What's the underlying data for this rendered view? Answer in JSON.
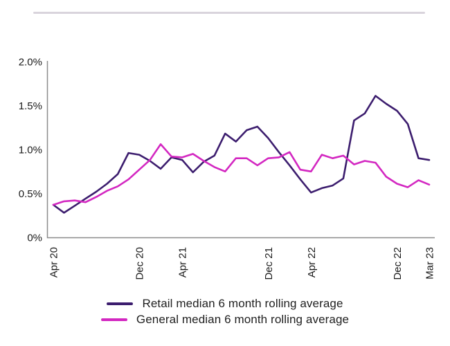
{
  "page": {
    "background_color": "#ffffff",
    "divider_color": "#D9D4DC"
  },
  "chart_data": {
    "type": "line",
    "title": "",
    "xlabel": "",
    "ylabel": "",
    "grid": false,
    "legend_position": "bottom",
    "y_unit": "%",
    "ylim": [
      0,
      2.0
    ],
    "axis_color": "#8C8C8C",
    "text_color": "#1A1A1A",
    "y_ticks": [
      {
        "value": 0,
        "label": "0%"
      },
      {
        "value": 0.5,
        "label": "0.5%"
      },
      {
        "value": 1.0,
        "label": "1.0%"
      },
      {
        "value": 1.5,
        "label": "1.5%"
      },
      {
        "value": 2.0,
        "label": "2.0%"
      }
    ],
    "x_categories": [
      "Apr 20",
      "May 20",
      "Jun 20",
      "Jul 20",
      "Aug 20",
      "Sep 20",
      "Oct 20",
      "Nov 20",
      "Dec 20",
      "Jan 21",
      "Feb 21",
      "Mar 21",
      "Apr 21",
      "May 21",
      "Jun 21",
      "Jul 21",
      "Aug 21",
      "Sep 21",
      "Oct 21",
      "Nov 21",
      "Dec 21",
      "Jan 22",
      "Feb 22",
      "Mar 22",
      "Apr 22",
      "May 22",
      "Jun 22",
      "Jul 22",
      "Aug 22",
      "Sep 22",
      "Oct 22",
      "Nov 22",
      "Dec 22",
      "Jan 23",
      "Feb 23",
      "Mar 23"
    ],
    "x_ticks": [
      {
        "index": 0,
        "label": "Apr 20"
      },
      {
        "index": 8,
        "label": "Dec 20"
      },
      {
        "index": 12,
        "label": "Apr 21"
      },
      {
        "index": 20,
        "label": "Dec 21"
      },
      {
        "index": 24,
        "label": "Apr 22"
      },
      {
        "index": 32,
        "label": "Dec 22"
      },
      {
        "index": 35,
        "label": "Mar 23"
      }
    ],
    "series": [
      {
        "key": "retail",
        "name": "Retail median 6 month rolling average",
        "color": "#3C1D6E",
        "values": [
          0.37,
          0.28,
          0.36,
          0.44,
          0.52,
          0.61,
          0.72,
          0.96,
          0.94,
          0.87,
          0.78,
          0.91,
          0.88,
          0.74,
          0.86,
          0.93,
          1.18,
          1.09,
          1.22,
          1.26,
          1.13,
          0.97,
          0.82,
          0.66,
          0.51,
          0.56,
          0.59,
          0.67,
          1.33,
          1.41,
          1.61,
          1.52,
          1.44,
          1.29,
          0.9,
          0.88
        ]
      },
      {
        "key": "general",
        "name": "General median 6 month rolling average",
        "color": "#D327C1",
        "values": [
          0.37,
          0.41,
          0.42,
          0.4,
          0.46,
          0.53,
          0.58,
          0.66,
          0.77,
          0.88,
          1.06,
          0.92,
          0.91,
          0.95,
          0.87,
          0.8,
          0.75,
          0.9,
          0.9,
          0.82,
          0.9,
          0.91,
          0.97,
          0.77,
          0.75,
          0.94,
          0.9,
          0.93,
          0.83,
          0.87,
          0.85,
          0.69,
          0.61,
          0.57,
          0.65,
          0.6
        ]
      }
    ]
  }
}
